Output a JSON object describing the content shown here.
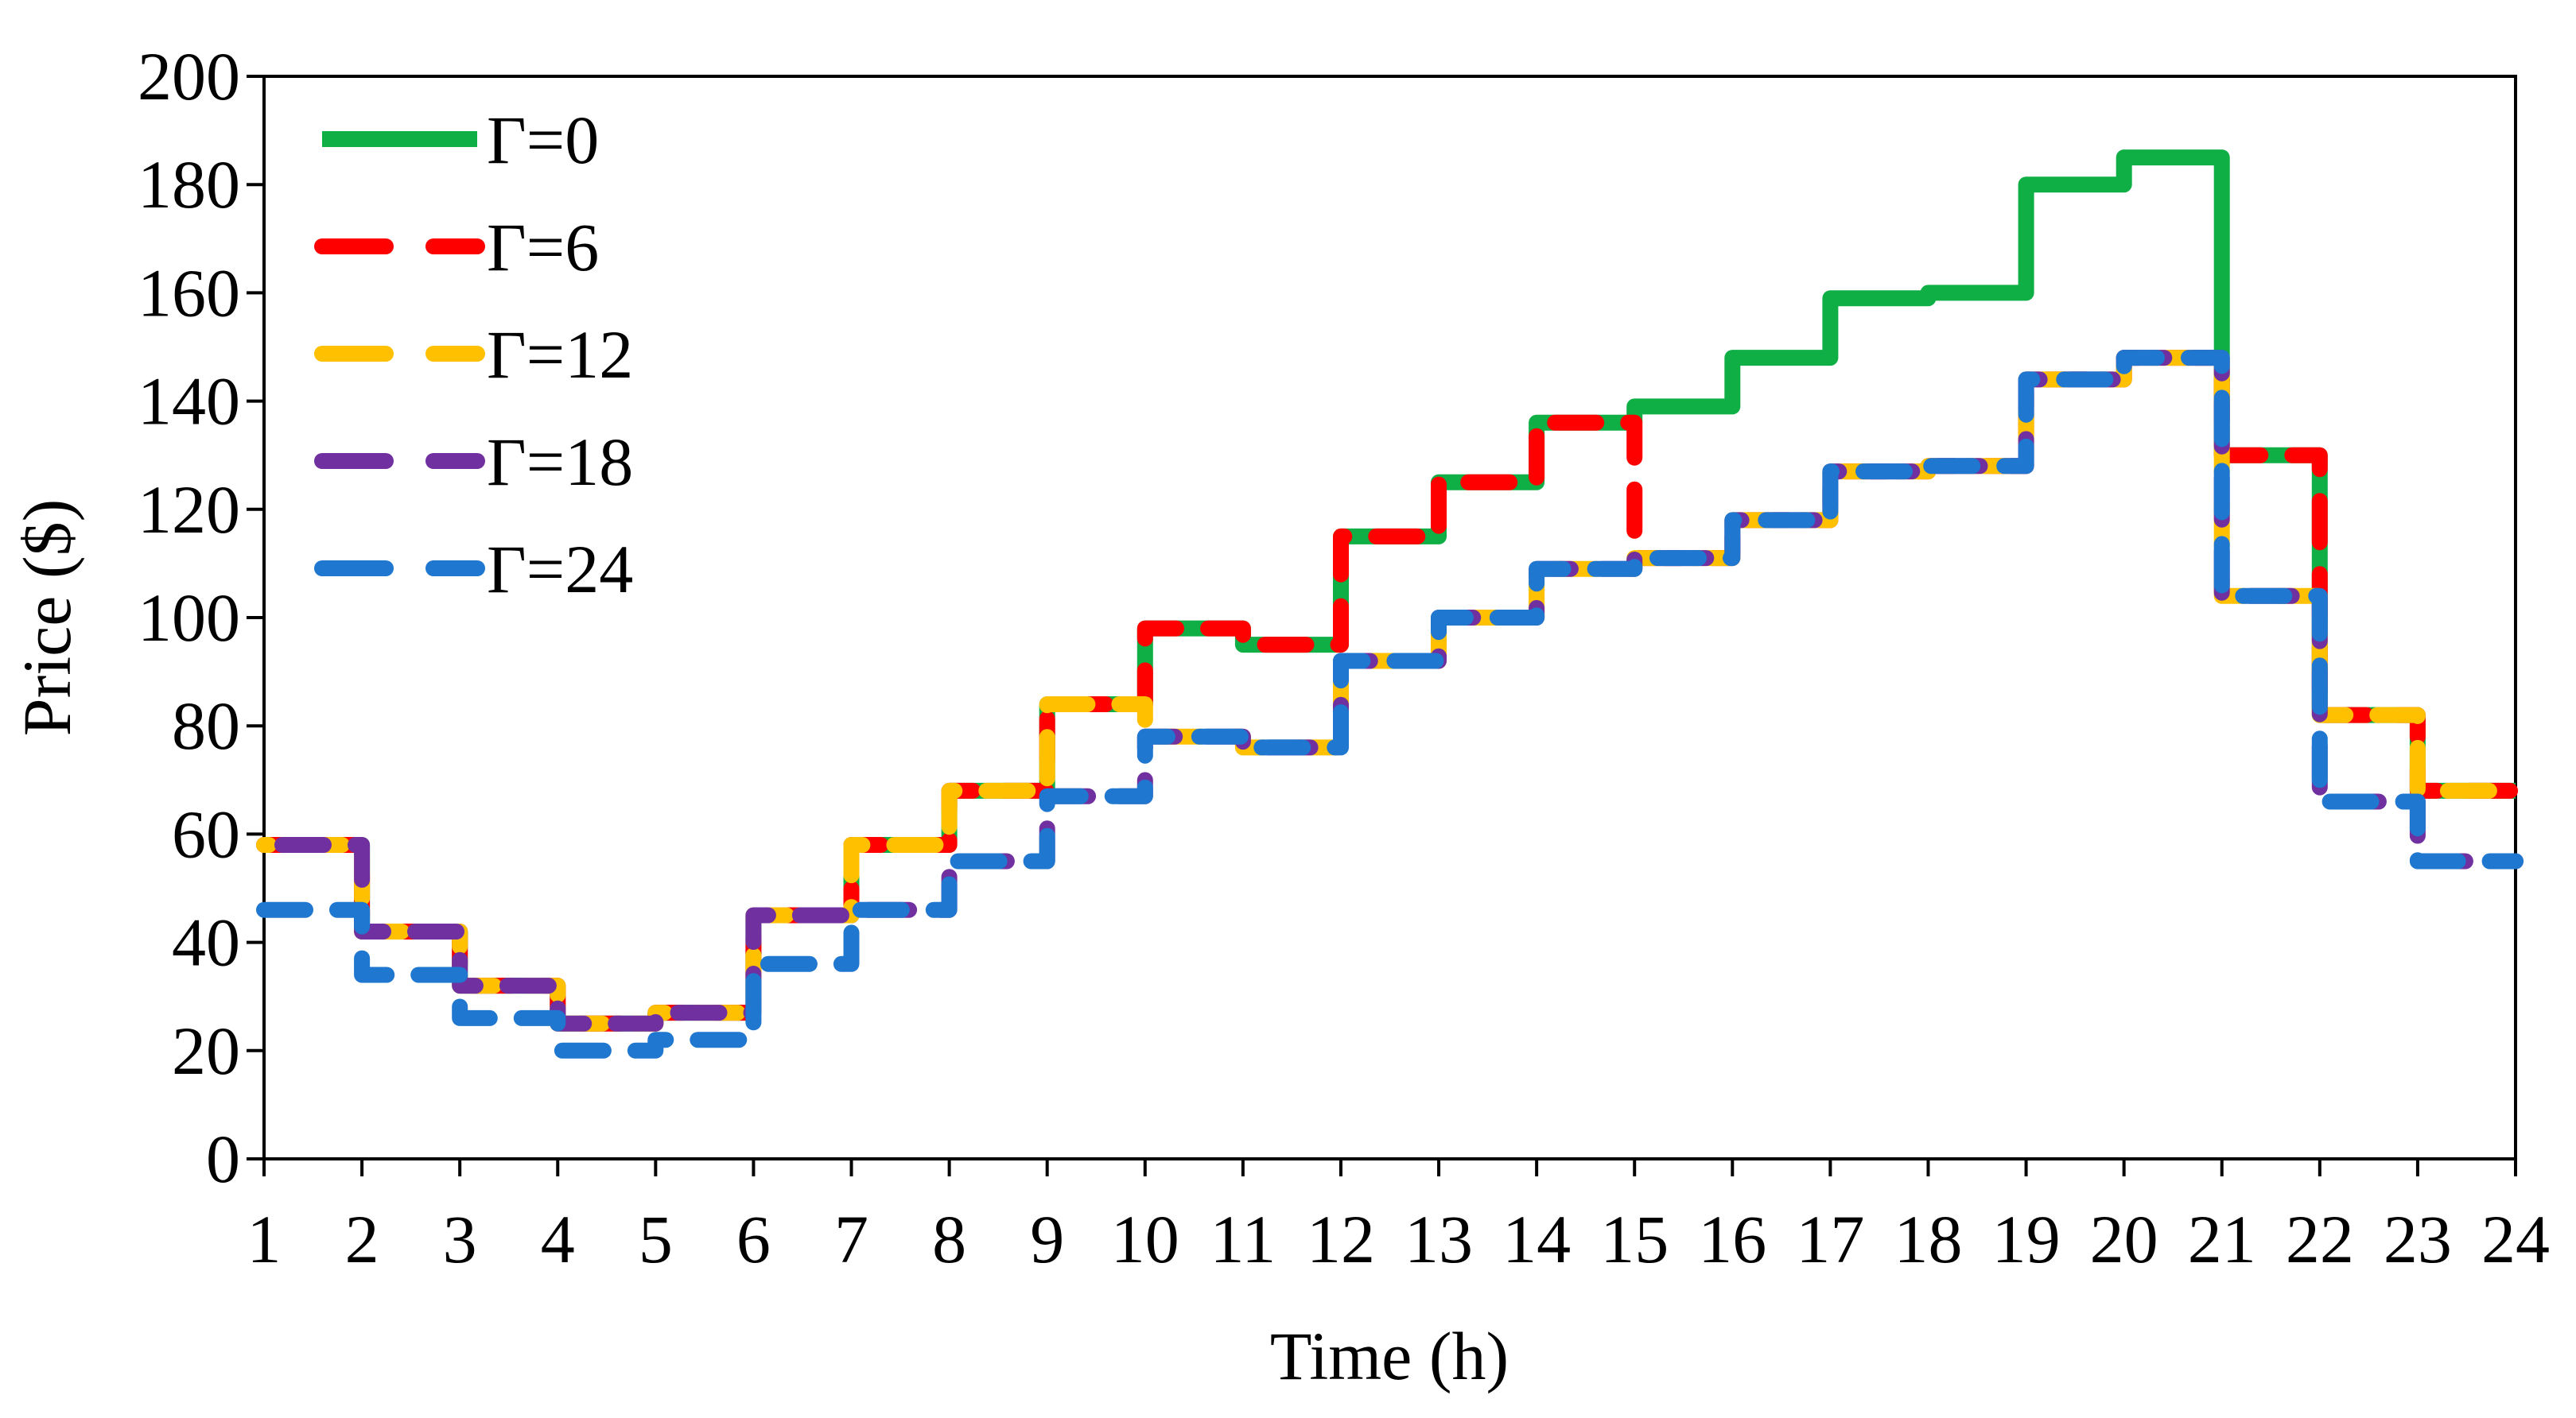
{
  "chart_data": {
    "type": "line",
    "step": true,
    "xlabel": "Time (h)",
    "ylabel": "Price ($)",
    "xlim": [
      1,
      24
    ],
    "ylim": [
      0,
      200
    ],
    "xticks": [
      1,
      2,
      3,
      4,
      5,
      6,
      7,
      8,
      9,
      10,
      11,
      12,
      13,
      14,
      15,
      16,
      17,
      18,
      19,
      20,
      21,
      22,
      23,
      24
    ],
    "yticks": [
      0,
      20,
      40,
      60,
      80,
      100,
      120,
      140,
      160,
      180,
      200
    ],
    "legend_position": "top-left",
    "series": [
      {
        "name": "Γ=0",
        "color": "#0FAF45",
        "style": "solid",
        "values": [
          58,
          42,
          32,
          25,
          27,
          45,
          58,
          68,
          84,
          98,
          95,
          115,
          125,
          136,
          139,
          148,
          159,
          160,
          180,
          185,
          130,
          82,
          68
        ]
      },
      {
        "name": "Γ=6",
        "color": "#FF0000",
        "style": "dashed",
        "values": [
          58,
          42,
          32,
          25,
          27,
          45,
          58,
          68,
          84,
          98,
          95,
          115,
          125,
          136,
          111,
          118,
          127,
          128,
          144,
          148,
          130,
          82,
          68
        ]
      },
      {
        "name": "Γ=12",
        "color": "#FFC000",
        "style": "dashed",
        "values": [
          58,
          42,
          32,
          25,
          27,
          45,
          58,
          68,
          84,
          78,
          76,
          92,
          100,
          109,
          111,
          118,
          127,
          128,
          144,
          148,
          104,
          82,
          68
        ]
      },
      {
        "name": "Γ=18",
        "color": "#7030A0",
        "style": "dashed",
        "values": [
          58,
          42,
          32,
          25,
          27,
          45,
          46,
          55,
          67,
          78,
          76,
          92,
          100,
          109,
          111,
          118,
          127,
          128,
          144,
          148,
          104,
          66,
          55
        ]
      },
      {
        "name": "Γ=24",
        "color": "#1F77CF",
        "style": "dashed",
        "values": [
          46,
          34,
          26,
          20,
          22,
          36,
          46,
          55,
          67,
          78,
          76,
          92,
          100,
          109,
          111,
          118,
          127,
          128,
          144,
          148,
          104,
          66,
          55
        ]
      }
    ]
  }
}
